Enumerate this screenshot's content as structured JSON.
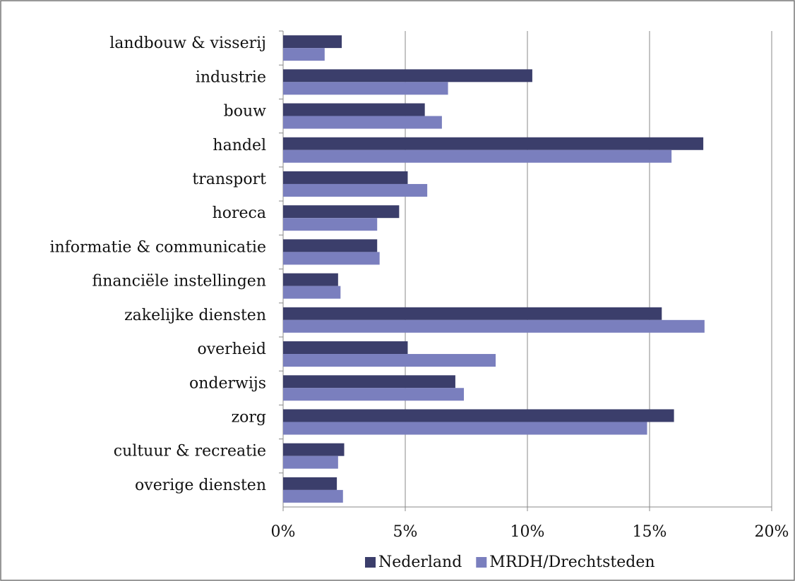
{
  "chart_data": {
    "type": "hbar",
    "categories": [
      "landbouw & visserij",
      "industrie",
      "bouw",
      "handel",
      "transport",
      "horeca",
      "informatie & communicatie",
      "financiële instellingen",
      "zakelijke diensten",
      "overheid",
      "onderwijs",
      "zorg",
      "cultuur & recreatie",
      "overige diensten"
    ],
    "series": [
      {
        "name": "Nederland",
        "color": "#3b3e6b",
        "values": [
          2.4,
          10.2,
          5.8,
          17.2,
          5.1,
          4.75,
          3.85,
          2.25,
          15.5,
          5.1,
          7.05,
          16.0,
          2.5,
          2.2
        ]
      },
      {
        "name": "MRDH/Drechtsteden",
        "color": "#7a7fbe",
        "values": [
          1.7,
          6.75,
          6.5,
          15.9,
          5.9,
          3.85,
          3.95,
          2.35,
          17.25,
          8.7,
          7.4,
          14.9,
          2.25,
          2.45
        ]
      }
    ],
    "xlim": [
      0,
      20
    ],
    "xticks": [
      {
        "value": 0,
        "label": "0%"
      },
      {
        "value": 5,
        "label": "5%"
      },
      {
        "value": 10,
        "label": "10%"
      },
      {
        "value": 15,
        "label": "15%"
      },
      {
        "value": 20,
        "label": "20%"
      }
    ],
    "grid": true,
    "legend": "bottom"
  }
}
